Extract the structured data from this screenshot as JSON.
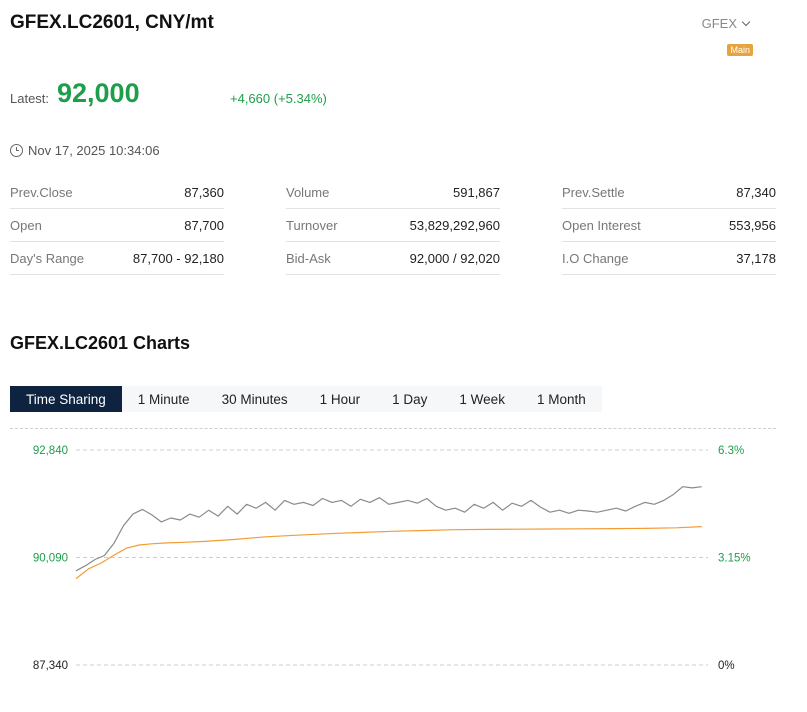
{
  "header": {
    "title": "GFEX.LC2601, CNY/mt",
    "exchange": "GFEX",
    "badge": "Main"
  },
  "quote": {
    "latest_label": "Latest:",
    "latest_value": "92,000",
    "change": "+4,660 (+5.34%)",
    "timestamp": "Nov 17, 2025 10:34:06"
  },
  "stats": {
    "col1": [
      {
        "label": "Prev.Close",
        "value": "87,360"
      },
      {
        "label": "Open",
        "value": "87,700"
      },
      {
        "label": "Day's Range",
        "value": "87,700 - 92,180"
      }
    ],
    "col2": [
      {
        "label": "Volume",
        "value": "591,867"
      },
      {
        "label": "Turnover",
        "value": "53,829,292,960"
      },
      {
        "label": "Bid-Ask",
        "value": "92,000 / 92,020"
      }
    ],
    "col3": [
      {
        "label": "Prev.Settle",
        "value": "87,340"
      },
      {
        "label": "Open Interest",
        "value": "553,956"
      },
      {
        "label": "I.O Change",
        "value": "37,178"
      }
    ]
  },
  "charts": {
    "title": "GFEX.LC2601 Charts",
    "tabs": [
      "Time Sharing",
      "1 Minute",
      "30 Minutes",
      "1 Hour",
      "1 Day",
      "1 Week",
      "1 Month"
    ],
    "active_tab": "Time Sharing"
  },
  "colors": {
    "up": "#1e9e4b",
    "price_line": "#8a8a8a",
    "avg_line": "#f39c34",
    "active_tab_bg": "#0d2340"
  },
  "chart_data": {
    "type": "line",
    "y_left_ticks": [
      "92,840",
      "90,090",
      "87,340"
    ],
    "y_right_ticks": [
      "6.3%",
      "3.15%",
      "0%"
    ],
    "ylim": [
      87340,
      92840
    ],
    "x_range": [
      0,
      100
    ],
    "series": [
      {
        "key": "price",
        "x": [
          0,
          1.5,
          3,
          4.5,
          6,
          7.5,
          9,
          10.5,
          12,
          13.5,
          15,
          16.5,
          18,
          19.5,
          21,
          22.5,
          24,
          25.5,
          27,
          28.5,
          30,
          31.5,
          33,
          34.5,
          36,
          37.5,
          39,
          40.5,
          42,
          43.5,
          45,
          46.5,
          48,
          49.5,
          51,
          52.5,
          54,
          55.5,
          57,
          58.5,
          60,
          61.5,
          63,
          64.5,
          66,
          67.5,
          69,
          70.5,
          72,
          73.5,
          75,
          76.5,
          78,
          79.5,
          81,
          82.5,
          84,
          85.5,
          87,
          88.5,
          90,
          91.5,
          93,
          94.5,
          96,
          97.5,
          99
        ],
        "values": [
          89750,
          89880,
          90040,
          90140,
          90450,
          90900,
          91200,
          91320,
          91180,
          91000,
          91100,
          91050,
          91200,
          91120,
          91300,
          91150,
          91400,
          91200,
          91450,
          91350,
          91500,
          91300,
          91550,
          91450,
          91500,
          91420,
          91600,
          91500,
          91550,
          91400,
          91580,
          91500,
          91620,
          91450,
          91500,
          91550,
          91480,
          91600,
          91400,
          91300,
          91350,
          91250,
          91450,
          91350,
          91500,
          91300,
          91480,
          91400,
          91550,
          91380,
          91250,
          91300,
          91220,
          91300,
          91280,
          91250,
          91300,
          91350,
          91280,
          91400,
          91500,
          91450,
          91550,
          91700,
          91900,
          91870,
          91900
        ]
      },
      {
        "key": "average",
        "x": [
          0,
          2,
          4,
          6,
          8,
          10,
          12,
          14,
          17,
          20,
          25,
          30,
          35,
          40,
          45,
          50,
          55,
          60,
          65,
          70,
          75,
          80,
          85,
          90,
          95,
          99
        ],
        "values": [
          89550,
          89800,
          89950,
          90150,
          90330,
          90410,
          90440,
          90460,
          90480,
          90500,
          90550,
          90620,
          90660,
          90700,
          90730,
          90760,
          90780,
          90800,
          90810,
          90815,
          90820,
          90825,
          90830,
          90835,
          90850,
          90880
        ]
      }
    ]
  }
}
